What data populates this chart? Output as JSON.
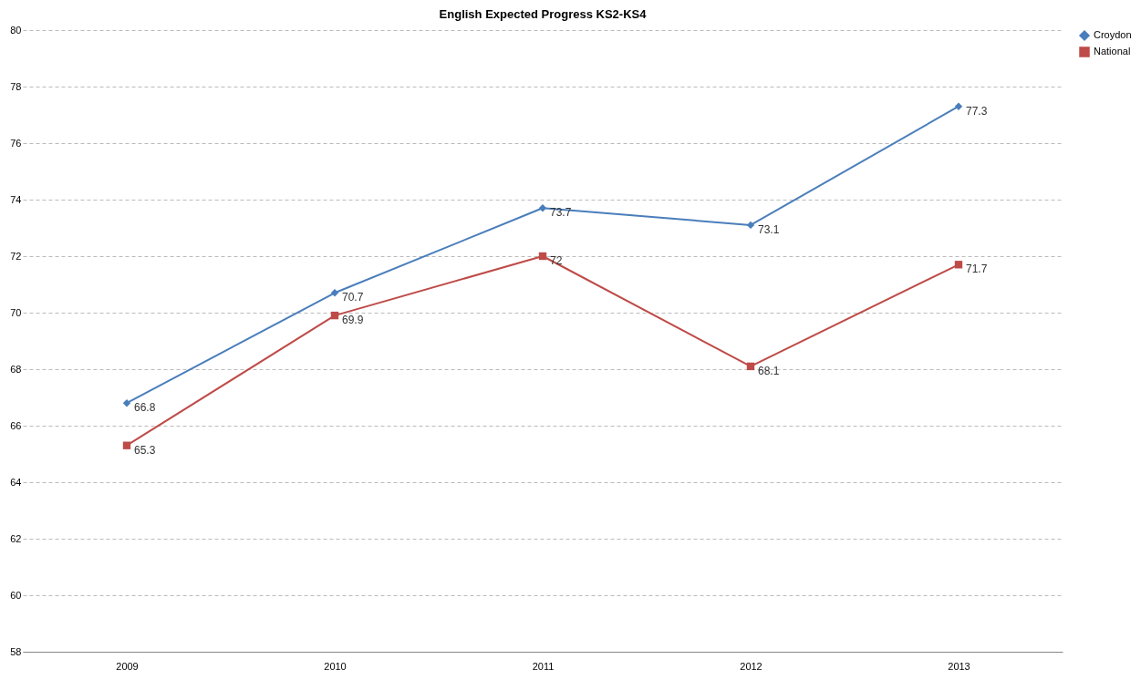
{
  "chart_data": {
    "type": "line",
    "title": "English Expected Progress KS2-KS4",
    "categories": [
      "2009",
      "2010",
      "2011",
      "2012",
      "2013"
    ],
    "series": [
      {
        "name": "Croydon",
        "color": "#4a7ebb",
        "marker": "diamond",
        "values": [
          66.8,
          70.7,
          73.7,
          73.1,
          77.3
        ]
      },
      {
        "name": "National",
        "color": "#be4b48",
        "marker": "square",
        "values": [
          65.3,
          69.9,
          72,
          68.1,
          71.7
        ]
      }
    ],
    "ylim": [
      58,
      80
    ],
    "yticks": [
      58,
      60,
      62,
      64,
      66,
      68,
      70,
      72,
      74,
      76,
      78,
      80
    ],
    "grid": "y",
    "legend": "right",
    "data_labels": true
  }
}
